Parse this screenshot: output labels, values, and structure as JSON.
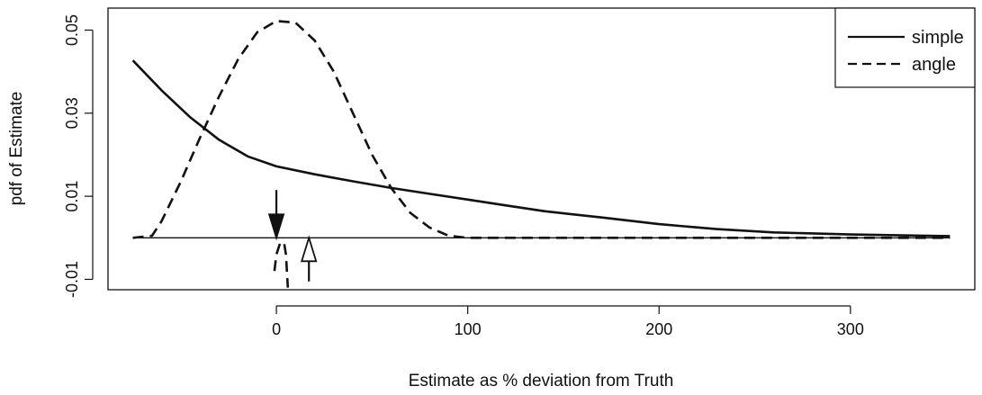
{
  "chart_data": {
    "type": "line",
    "title": "",
    "xlabel": "Estimate as % deviation from Truth",
    "ylabel": "pdf of Estimate",
    "xlim": [
      -88,
      365
    ],
    "ylim": [
      -0.0125,
      0.0553
    ],
    "x_ticks": [
      0,
      100,
      200,
      300
    ],
    "x_tick_labels": [
      "0",
      "100",
      "200",
      "300"
    ],
    "y_ticks": [
      -0.01,
      0.01,
      0.03,
      0.05
    ],
    "y_tick_labels": [
      "-0.01",
      "0.01",
      "0.03",
      "0.05"
    ],
    "grid": false,
    "legend_position": "top-right",
    "baseline": {
      "y": 0,
      "x_range": [
        -75,
        352
      ]
    },
    "series": [
      {
        "name": "simple",
        "style": "solid",
        "x": [
          -75,
          -60,
          -45,
          -30,
          -15,
          0,
          20,
          40,
          60,
          80,
          100,
          120,
          140,
          170,
          200,
          230,
          260,
          300,
          352
        ],
        "y": [
          0.0427,
          0.0355,
          0.029,
          0.0236,
          0.0196,
          0.0172,
          0.0153,
          0.0136,
          0.012,
          0.0106,
          0.0092,
          0.0078,
          0.0064,
          0.0049,
          0.0033,
          0.0021,
          0.0013,
          0.0008,
          0.0004
        ]
      },
      {
        "name": "angle",
        "style": "dashed",
        "x": [
          -75,
          -65,
          -60,
          -50,
          -40,
          -30,
          -20,
          -10,
          0,
          10,
          20,
          30,
          40,
          50,
          60,
          70,
          80,
          90,
          100,
          110,
          150,
          200,
          250,
          300,
          352
        ],
        "y": [
          0.0,
          0.0005,
          0.004,
          0.0135,
          0.024,
          0.034,
          0.043,
          0.0495,
          0.0522,
          0.0518,
          0.0475,
          0.04,
          0.03,
          0.02,
          0.012,
          0.006,
          0.0025,
          0.0005,
          0.0,
          0.0,
          0.0,
          0.0,
          0.0,
          0.0,
          0.0
        ]
      },
      {
        "name": "",
        "style": "dashed",
        "x": [
          -1,
          0,
          2,
          4,
          5,
          6
        ],
        "y": [
          -0.008,
          -0.004,
          -0.0012,
          -0.0012,
          -0.004,
          -0.012
        ]
      }
    ],
    "annotations": [
      {
        "type": "arrow",
        "fill": "#111111",
        "x": 0,
        "from_y": 0.0115,
        "to_y": 0.0
      },
      {
        "type": "arrow",
        "fill": "#ffffff",
        "x": 17,
        "from_y": -0.0105,
        "to_y": 0.0
      }
    ]
  }
}
